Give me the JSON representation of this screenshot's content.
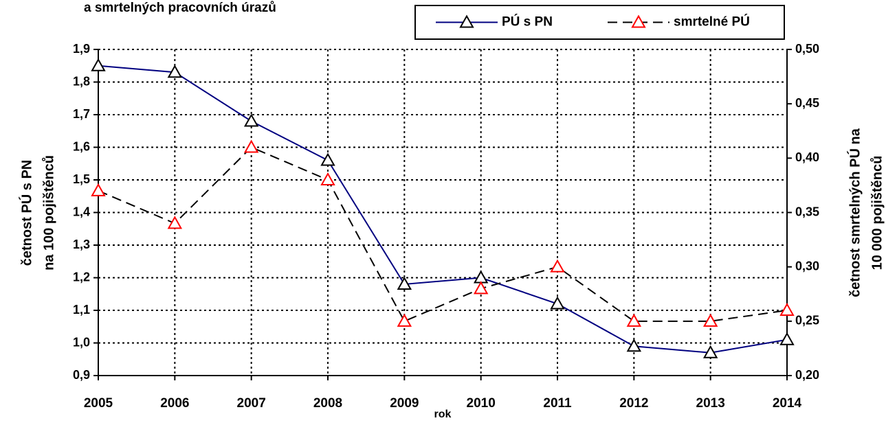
{
  "chart_data": {
    "type": "line",
    "title": "a smrtelných pracovních úrazů",
    "x_label": "rok",
    "y_label": [
      "četnost PÚ s PN",
      "na 100 pojištěnců"
    ],
    "y2_label": [
      "četnost smrtelných PÚ na",
      "10 000 pojištěnců"
    ],
    "categories": [
      "2005",
      "2006",
      "2007",
      "2008",
      "2009",
      "2010",
      "2011",
      "2012",
      "2013",
      "2014"
    ],
    "series": [
      {
        "name": "PÚ s PN",
        "color": "#000080",
        "marker_color": "#000000",
        "dashed": false,
        "values": [
          1.85,
          1.83,
          1.68,
          1.56,
          1.18,
          1.2,
          1.12,
          0.99,
          0.97,
          1.01
        ]
      },
      {
        "name": "smrtelné PÚ",
        "color": "#000000",
        "marker_color": "#ff0000",
        "dashed": true,
        "axis": "y2",
        "values": [
          0.37,
          0.34,
          0.41,
          0.38,
          0.25,
          0.28,
          0.3,
          0.25,
          0.25,
          0.26
        ]
      }
    ],
    "ylim": [
      0.9,
      1.9
    ],
    "yticks": [
      {
        "value": 0.9,
        "label": "0,9"
      },
      {
        "value": 1.0,
        "label": "1,0"
      },
      {
        "value": 1.1,
        "label": "1,1"
      },
      {
        "value": 1.2,
        "label": "1,2"
      },
      {
        "value": 1.3,
        "label": "1,3"
      },
      {
        "value": 1.4,
        "label": "1,4"
      },
      {
        "value": 1.5,
        "label": "1,5"
      },
      {
        "value": 1.6,
        "label": "1,6"
      },
      {
        "value": 1.7,
        "label": "1,7"
      },
      {
        "value": 1.8,
        "label": "1,8"
      },
      {
        "value": 1.9,
        "label": "1,9"
      }
    ],
    "y2lim": [
      0.2,
      0.5
    ],
    "y2ticks": [
      {
        "value": 0.2,
        "label": "0,20"
      },
      {
        "value": 0.25,
        "label": "0,25"
      },
      {
        "value": 0.3,
        "label": "0,30"
      },
      {
        "value": 0.35,
        "label": "0,35"
      },
      {
        "value": 0.4,
        "label": "0,40"
      },
      {
        "value": 0.45,
        "label": "0,45"
      },
      {
        "value": 0.5,
        "label": "0,50"
      }
    ],
    "grid": true,
    "legend": "top-right"
  }
}
